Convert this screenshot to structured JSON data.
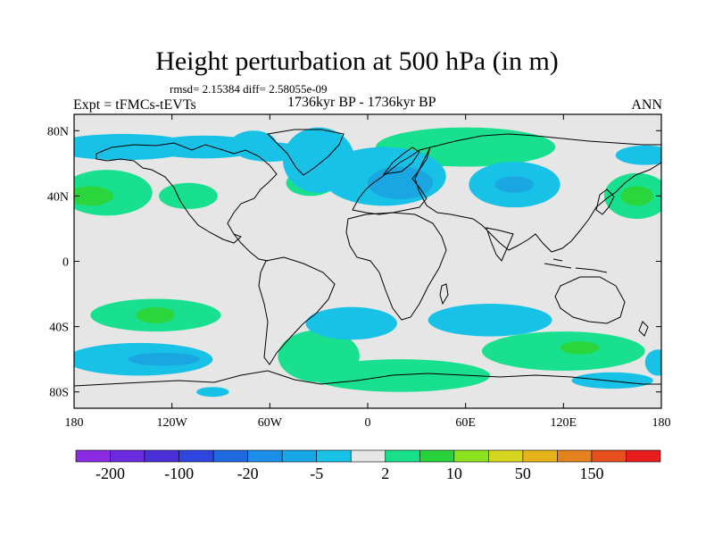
{
  "chart_data": {
    "type": "heatmap",
    "title": "Height perturbation at 500 hPa (in m)",
    "stats": "rmsd= 2.15384 diff= 2.58055e-09",
    "left_label": "Expt = tFMCs-tEVTs",
    "center_label": "1736kyr BP - 1736kyr BP",
    "right_label": "ANN",
    "x_range": [
      -180,
      180
    ],
    "y_range": [
      -90,
      90
    ],
    "x_ticks": [
      {
        "value": -180,
        "label": "180"
      },
      {
        "value": -120,
        "label": "120W"
      },
      {
        "value": -60,
        "label": "60W"
      },
      {
        "value": 0,
        "label": "0"
      },
      {
        "value": 60,
        "label": "60E"
      },
      {
        "value": 120,
        "label": "120E"
      },
      {
        "value": 180,
        "label": "180"
      }
    ],
    "y_ticks": [
      {
        "value": 80,
        "label": "80N"
      },
      {
        "value": 40,
        "label": "40N"
      },
      {
        "value": 0,
        "label": "0"
      },
      {
        "value": -40,
        "label": "40S"
      },
      {
        "value": -80,
        "label": "80S"
      }
    ],
    "colorbar": {
      "colors": [
        "#8a2be2",
        "#6a2ae0",
        "#4b2fd8",
        "#2f45e0",
        "#1e69e0",
        "#1a8ee8",
        "#18a8e8",
        "#18c2e6",
        "#e6e6e6",
        "#18e088",
        "#28d23a",
        "#8ce21e",
        "#d6d61e",
        "#e6b41a",
        "#e6821e",
        "#e6501e",
        "#e81e1e"
      ],
      "labels": [
        {
          "after_index": 0,
          "text": "-200"
        },
        {
          "after_index": 2,
          "text": "-100"
        },
        {
          "after_index": 4,
          "text": "-20"
        },
        {
          "after_index": 6,
          "text": "-5"
        },
        {
          "after_index": 8,
          "text": "2"
        },
        {
          "after_index": 10,
          "text": "10"
        },
        {
          "after_index": 12,
          "text": "50"
        },
        {
          "after_index": 14,
          "text": "150"
        }
      ]
    },
    "anomalies": [
      {
        "lon": -150,
        "lat": 70,
        "rlon": 45,
        "rlat": 8,
        "level": -5
      },
      {
        "lon": -100,
        "lat": 70,
        "rlon": 35,
        "rlat": 7,
        "level": -5
      },
      {
        "lon": -60,
        "lat": 67,
        "rlon": 20,
        "rlat": 6,
        "level": -5
      },
      {
        "lon": -30,
        "lat": 62,
        "rlon": 22,
        "rlat": 20,
        "level": -5
      },
      {
        "lon": 10,
        "lat": 52,
        "rlon": 38,
        "rlat": 18,
        "level": -5
      },
      {
        "lon": 20,
        "lat": 48,
        "rlon": 20,
        "rlat": 10,
        "level": -20
      },
      {
        "lon": -70,
        "lat": 72,
        "rlon": 14,
        "rlat": 8,
        "level": -5
      },
      {
        "lon": 90,
        "lat": 47,
        "rlon": 28,
        "rlat": 14,
        "level": -5
      },
      {
        "lon": 90,
        "lat": 47,
        "rlon": 12,
        "rlat": 5,
        "level": -20
      },
      {
        "lon": -160,
        "lat": 42,
        "rlon": 28,
        "rlat": 14,
        "level": 2
      },
      {
        "lon": -170,
        "lat": 40,
        "rlon": 14,
        "rlat": 6,
        "level": 10
      },
      {
        "lon": 165,
        "lat": 40,
        "rlon": 20,
        "rlat": 14,
        "level": 2
      },
      {
        "lon": 165,
        "lat": 40,
        "rlon": 10,
        "rlat": 6,
        "level": 10
      },
      {
        "lon": -110,
        "lat": 40,
        "rlon": 18,
        "rlat": 8,
        "level": 2
      },
      {
        "lon": -35,
        "lat": 48,
        "rlon": 15,
        "rlat": 8,
        "level": 2
      },
      {
        "lon": 60,
        "lat": 70,
        "rlon": 55,
        "rlat": 12,
        "level": 2
      },
      {
        "lon": 170,
        "lat": 65,
        "rlon": 18,
        "rlat": 6,
        "level": -5
      },
      {
        "lon": -130,
        "lat": -33,
        "rlon": 40,
        "rlat": 10,
        "level": 2
      },
      {
        "lon": -130,
        "lat": -33,
        "rlon": 12,
        "rlat": 5,
        "level": 10
      },
      {
        "lon": -140,
        "lat": -60,
        "rlon": 45,
        "rlat": 10,
        "level": -5
      },
      {
        "lon": -125,
        "lat": -60,
        "rlon": 22,
        "rlat": 4,
        "level": -20
      },
      {
        "lon": -30,
        "lat": -58,
        "rlon": 25,
        "rlat": 16,
        "level": 2
      },
      {
        "lon": -10,
        "lat": -38,
        "rlon": 28,
        "rlat": 10,
        "level": -5
      },
      {
        "lon": 75,
        "lat": -36,
        "rlon": 38,
        "rlat": 10,
        "level": -5
      },
      {
        "lon": 120,
        "lat": -55,
        "rlon": 50,
        "rlat": 12,
        "level": 2
      },
      {
        "lon": 130,
        "lat": -53,
        "rlon": 12,
        "rlat": 4,
        "level": 10
      },
      {
        "lon": 20,
        "lat": -70,
        "rlon": 55,
        "rlat": 10,
        "level": 2
      },
      {
        "lon": 150,
        "lat": -73,
        "rlon": 25,
        "rlat": 5,
        "level": -5
      },
      {
        "lon": 178,
        "lat": -62,
        "rlon": 8,
        "rlat": 8,
        "level": -5
      },
      {
        "lon": -95,
        "lat": -80,
        "rlon": 10,
        "rlat": 3,
        "level": -5
      }
    ],
    "level_colors": {
      "-20": "#1aa6e0",
      "-5": "#18c2e6",
      "2": "#18e08e",
      "10": "#2ad63c"
    }
  }
}
